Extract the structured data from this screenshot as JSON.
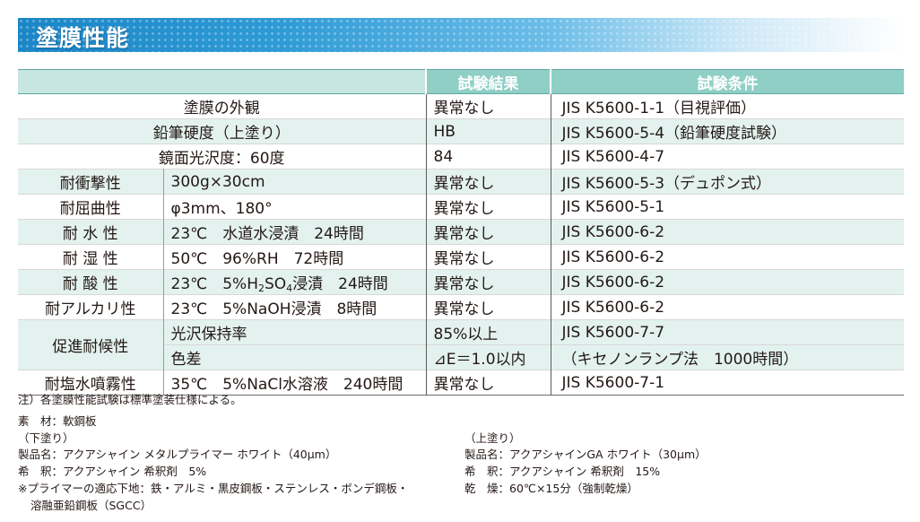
{
  "banner": {
    "title": "塗膜性能"
  },
  "table": {
    "headers": {
      "result": "試験結果",
      "condition": "試験条件"
    },
    "rows": [
      {
        "label": "塗膜の外観",
        "result": "異常なし",
        "condition": "JIS K5600-1-1（目視評価）"
      },
      {
        "label": "鉛筆硬度（上塗り）",
        "result": "HB",
        "condition": "JIS K5600-5-4（鉛筆硬度試験）"
      },
      {
        "label": "鏡面光沢度：60度",
        "result": "84",
        "condition": "JIS K5600-4-7"
      },
      {
        "label": "耐衝撃性",
        "sub": "300g×30cm",
        "result": "異常なし",
        "condition": "JIS K5600-5-3（デュポン式）"
      },
      {
        "label": "耐屈曲性",
        "sub": "φ3mm、180°",
        "result": "異常なし",
        "condition": "JIS K5600-5-1"
      },
      {
        "label": "耐 水 性",
        "sub": "23℃　水道水浸漬　24時間",
        "result": "異常なし",
        "condition": "JIS K5600-6-2"
      },
      {
        "label": "耐 湿 性",
        "sub": "50℃　96%RH　72時間",
        "result": "異常なし",
        "condition": "JIS K5600-6-2"
      },
      {
        "label": "耐 酸 性",
        "sub_a": "23℃　5%H",
        "sub_b": "2",
        "sub_c": "SO",
        "sub_d": "4",
        "sub_e": "浸漬　24時間",
        "result": "異常なし",
        "condition": "JIS K5600-6-2"
      },
      {
        "label": "耐アルカリ性",
        "sub": "23℃　5%NaOH浸漬　8時間",
        "result": "異常なし",
        "condition": "JIS K5600-6-2"
      },
      {
        "label": "促進耐候性",
        "sub": "光沢保持率",
        "result": "85%以上",
        "condition": "JIS K5600-7-7"
      },
      {
        "sub": "色差",
        "result": "⊿E＝1.0以内",
        "condition": "（キセノンランプ法　1000時間）"
      },
      {
        "label": "耐塩水噴霧性",
        "sub": "35℃　5%NaCl水溶液　240時間",
        "result": "異常なし",
        "condition": "JIS K5600-7-1"
      }
    ]
  },
  "notes": {
    "footnote": "注）各塗膜性能試験は標準塗装仕様による。",
    "material": "素　材：軟鋼板",
    "left": {
      "heading": "（下塗り）",
      "product": "製品名：アクアシャイン メタルプライマー ホワイト（40μm）",
      "thinner": "希　釈：アクアシャイン 希釈剤　5%",
      "substrate1": "※プライマーの適応下地：鉄・アルミ・黒皮鋼板・ステンレス・ボンデ鋼板・",
      "substrate2": "溶融亜鉛鋼板（SGCC）"
    },
    "right": {
      "heading": "（上塗り）",
      "product": "製品名：アクアシャインGA ホワイト（30μm）",
      "thinner": "希　釈：アクアシャイン 希釈剤　15%",
      "drying": "乾　燥：60℃×15分（強制乾燥）"
    }
  }
}
